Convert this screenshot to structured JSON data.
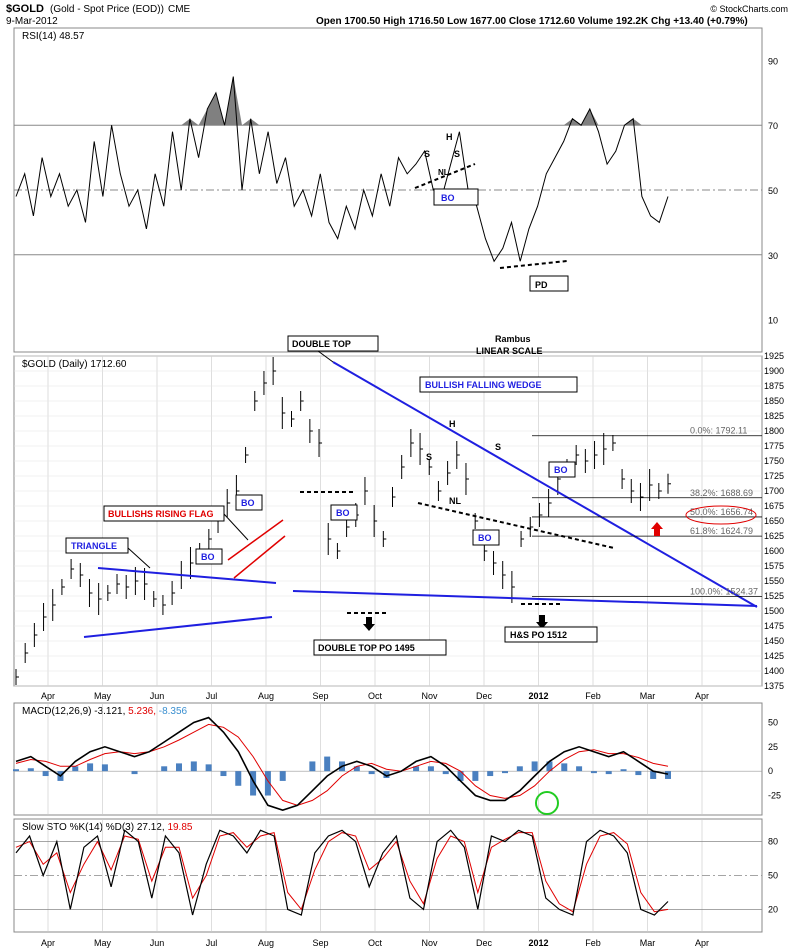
{
  "header": {
    "symbol": "$GOLD",
    "desc": "(Gold - Spot Price (EOD))",
    "exchange": "CME",
    "date": "9-Mar-2012",
    "ohlc": "Open 1700.50  High 1716.50  Low 1677.00  Close 1712.60  Volume 192.2K  Chg +13.40 (+0.79%)",
    "credit": "© StockCharts.com"
  },
  "colors": {
    "blue": "#1f1fe0",
    "red": "#e00000",
    "rsi_fill": "#808080",
    "macd_hist": "#4a80c0",
    "green": "#22cc22",
    "grid": "#c8c8c8"
  },
  "x_axis": {
    "months": [
      "Apr",
      "May",
      "Jun",
      "Jul",
      "Aug",
      "Sep",
      "Oct",
      "Nov",
      "Dec",
      "2012",
      "Feb",
      "Mar",
      "Apr"
    ]
  },
  "labels": {
    "rambus": "Rambus",
    "scale": "LINEAR SCALE",
    "double_top": "DOUBLE TOP",
    "wedge": "BULLISH FALLING WEDGE",
    "flag": "BULLISHS RISING FLAG",
    "triangle": "TRIANGLE",
    "bo": "BO",
    "pd": "PD",
    "nl": "NL",
    "h": "H",
    "s": "S",
    "dt_po": "DOUBLE TOP PO 1495",
    "hs_po": "H&S PO 1512"
  },
  "chart_data": [
    {
      "type": "line",
      "title": "RSI(14) 48.57",
      "series": [
        {
          "name": "RSI(14)",
          "values": [
            48,
            55,
            42,
            60,
            48,
            55,
            45,
            50,
            40,
            65,
            48,
            70,
            55,
            45,
            50,
            38,
            55,
            45,
            68,
            50,
            72,
            60,
            75,
            80,
            70,
            85,
            50,
            72,
            55,
            68,
            52,
            60,
            45,
            50,
            42,
            55,
            40,
            35,
            45,
            38,
            50,
            42,
            55,
            45,
            60,
            55,
            58,
            62,
            50,
            48,
            58,
            68,
            50,
            45,
            35,
            28,
            32,
            40,
            28,
            38,
            45,
            55,
            60,
            65,
            72,
            70,
            75,
            68,
            58,
            62,
            70,
            72,
            48,
            42,
            40,
            48
          ]
        }
      ],
      "ylim": [
        0,
        100
      ],
      "ticks": [
        "90",
        "70",
        "50",
        "30",
        "10"
      ],
      "levels": [
        70,
        50,
        30
      ]
    },
    {
      "type": "line",
      "title": "$GOLD (Daily) 1712.60",
      "series": [
        {
          "name": "$GOLD",
          "values": [
            1390,
            1430,
            1460,
            1490,
            1510,
            1540,
            1570,
            1560,
            1530,
            1520,
            1530,
            1545,
            1540,
            1550,
            1545,
            1520,
            1510,
            1530,
            1560,
            1580,
            1600,
            1620,
            1650,
            1680,
            1700,
            1760,
            1850,
            1880,
            1900,
            1830,
            1820,
            1850,
            1800,
            1780,
            1620,
            1600,
            1640,
            1660,
            1700,
            1650,
            1620,
            1690,
            1740,
            1780,
            1770,
            1740,
            1700,
            1730,
            1760,
            1720,
            1650,
            1600,
            1580,
            1560,
            1540,
            1620,
            1640,
            1660,
            1680,
            1720,
            1740,
            1760,
            1750,
            1760,
            1770,
            1780,
            1720,
            1700,
            1690,
            1710,
            1700,
            1712
          ]
        }
      ],
      "ylim": [
        1375,
        1925
      ],
      "ticks": [
        "1925",
        "1900",
        "1875",
        "1850",
        "1825",
        "1800",
        "1775",
        "1750",
        "1725",
        "1700",
        "1675",
        "1650",
        "1625",
        "1600",
        "1575",
        "1550",
        "1525",
        "1500",
        "1475",
        "1450",
        "1425",
        "1400",
        "1375"
      ],
      "fib": [
        {
          "label": "0.0%: 1792.11",
          "value": 1792.11
        },
        {
          "label": "38.2%: 1688.69",
          "value": 1688.69
        },
        {
          "label": "50.0%: 1656.74",
          "value": 1656.74
        },
        {
          "label": "61.8%: 1624.79",
          "value": 1624.79
        },
        {
          "label": "100.0%: 1524.37",
          "value": 1524.37
        }
      ]
    },
    {
      "type": "line",
      "title": "MACD(12,26,9) -3.121, 5.236, -8.356",
      "legend": [
        "MACD(12,26,9) -3.121,",
        "5.236,",
        "-8.356"
      ],
      "series": [
        {
          "name": "MACD",
          "values": [
            10,
            15,
            5,
            -5,
            10,
            20,
            25,
            20,
            15,
            20,
            30,
            40,
            50,
            55,
            40,
            20,
            -10,
            -35,
            -40,
            -35,
            -20,
            -5,
            5,
            10,
            5,
            -5,
            0,
            10,
            15,
            5,
            -10,
            -25,
            -30,
            -30,
            -20,
            -5,
            10,
            20,
            25,
            20,
            15,
            20,
            10,
            0,
            -3
          ]
        },
        {
          "name": "Signal",
          "values": [
            8,
            12,
            10,
            5,
            5,
            12,
            18,
            20,
            18,
            20,
            25,
            32,
            40,
            48,
            45,
            35,
            15,
            -10,
            -30,
            -35,
            -30,
            -20,
            -5,
            5,
            8,
            2,
            0,
            5,
            10,
            8,
            0,
            -15,
            -25,
            -28,
            -25,
            -15,
            0,
            12,
            20,
            22,
            18,
            18,
            14,
            8,
            5
          ]
        }
      ],
      "ylim": [
        -45,
        70
      ],
      "ticks": [
        "50",
        "25",
        "0",
        "-25"
      ]
    },
    {
      "type": "line",
      "title": "Slow STO %K(14) %D(3) 27.12, 19.85",
      "legend": [
        "Slow STO %K(14) %D(3) 27.12,",
        "19.85"
      ],
      "series": [
        {
          "name": "%K",
          "values": [
            70,
            85,
            50,
            80,
            20,
            75,
            85,
            40,
            90,
            80,
            30,
            85,
            70,
            15,
            60,
            90,
            85,
            70,
            90,
            85,
            20,
            15,
            70,
            85,
            90,
            80,
            40,
            70,
            85,
            30,
            20,
            80,
            90,
            75,
            20,
            85,
            80,
            90,
            85,
            30,
            20,
            15,
            80,
            90,
            85,
            70,
            20,
            15,
            27
          ]
        },
        {
          "name": "%D",
          "values": [
            75,
            80,
            60,
            70,
            35,
            60,
            80,
            55,
            85,
            82,
            45,
            75,
            75,
            30,
            50,
            85,
            88,
            75,
            85,
            88,
            35,
            20,
            55,
            80,
            88,
            85,
            55,
            65,
            80,
            45,
            25,
            65,
            85,
            80,
            35,
            75,
            82,
            88,
            88,
            45,
            25,
            18,
            60,
            85,
            88,
            78,
            35,
            18,
            20
          ]
        }
      ],
      "ylim": [
        0,
        100
      ],
      "ticks": [
        "80",
        "50",
        "20"
      ]
    }
  ]
}
